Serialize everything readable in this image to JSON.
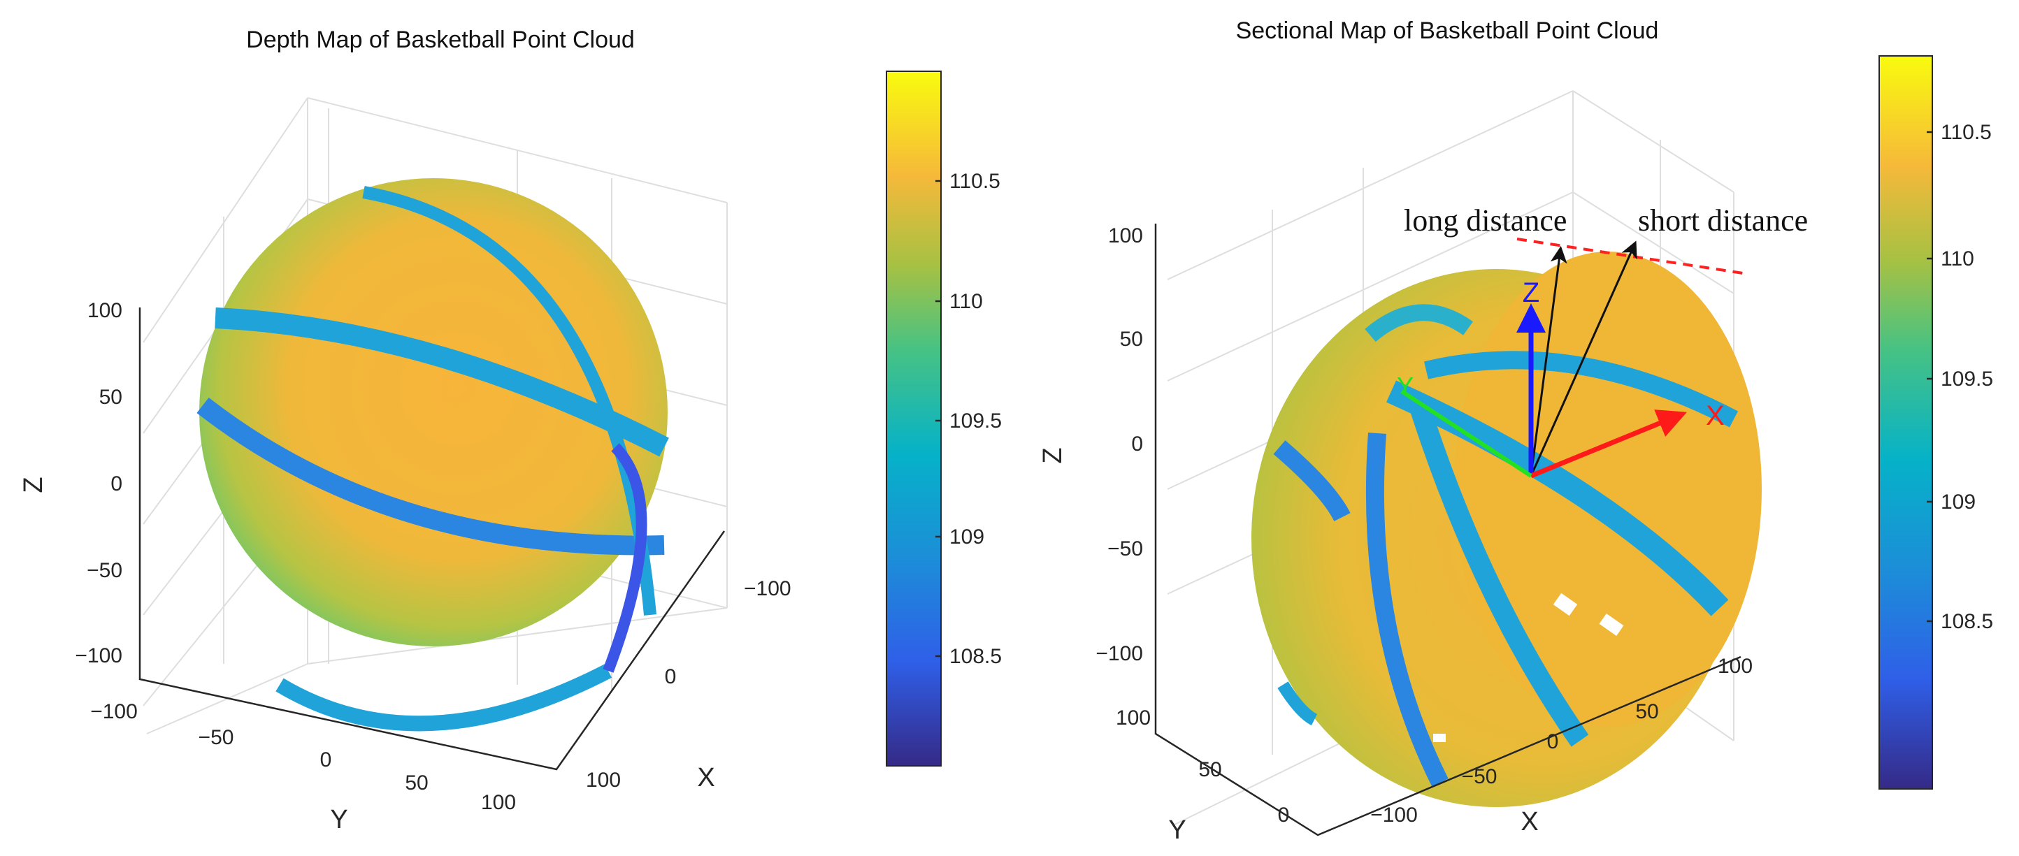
{
  "chart_data": [
    {
      "type": "scatter",
      "subtype": "3d-point-cloud",
      "title": "Depth Map of Basketball Point Cloud",
      "xlabel": "X",
      "ylabel": "Y",
      "zlabel": "Z",
      "x_ticks": [
        "−100",
        "0",
        "100"
      ],
      "y_ticks": [
        "−100",
        "−50",
        "0",
        "50",
        "100"
      ],
      "z_ticks": [
        "100",
        "50",
        "0",
        "−50",
        "−100"
      ],
      "xlim": [
        -110,
        110
      ],
      "ylim": [
        -110,
        110
      ],
      "zlim": [
        -110,
        110
      ],
      "colorbar": {
        "ticks": [
          "110.5",
          "110",
          "109.5",
          "109",
          "108.5"
        ],
        "range": [
          108.0,
          111.0
        ],
        "colormap": "parula"
      },
      "grid": true
    },
    {
      "type": "scatter",
      "subtype": "3d-point-cloud",
      "title": "Sectional Map of Basketball Point Cloud",
      "xlabel": "X",
      "ylabel": "Y",
      "zlabel": "Z",
      "x_ticks": [
        "−100",
        "−50",
        "0",
        "50",
        "100"
      ],
      "y_ticks": [
        "100",
        "50",
        "0"
      ],
      "z_ticks": [
        "100",
        "50",
        "0",
        "−50",
        "−100"
      ],
      "xlim": [
        -110,
        110
      ],
      "ylim": [
        0,
        110
      ],
      "zlim": [
        -110,
        110
      ],
      "colorbar": {
        "ticks": [
          "110.5",
          "110",
          "109.5",
          "109",
          "108.5"
        ],
        "range": [
          108.0,
          110.8
        ],
        "colormap": "parula"
      },
      "annotations": {
        "long": "long distance",
        "short": "short distance",
        "axis_x": "X",
        "axis_y": "Y",
        "axis_z": "Z"
      },
      "grid": true
    }
  ],
  "colors": {
    "ball": "#f2b632",
    "seam": "#1fa3d8",
    "seam_dark": "#3b55e6",
    "axis_x": "#ff1a1a",
    "axis_y": "#22e022",
    "axis_z": "#1a1aff",
    "dash": "#ff2020"
  }
}
